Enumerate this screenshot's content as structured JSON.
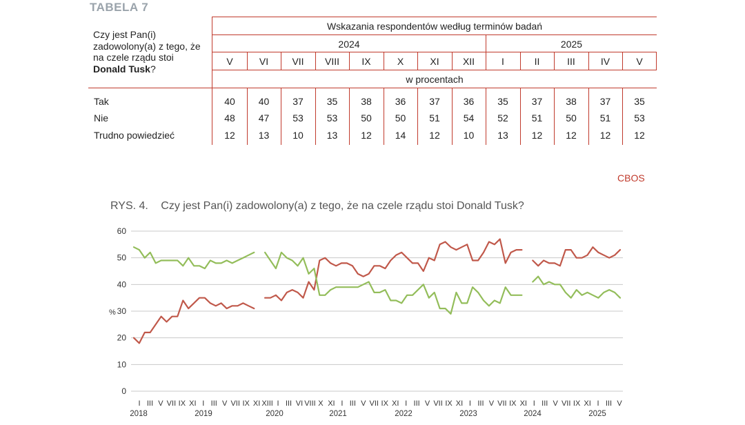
{
  "table": {
    "label": "TABELA 7",
    "question_part1": "Czy jest Pan(i) zadowolony(a) z tego, że na czele rządu stoi",
    "question_bold": "Donald Tusk",
    "question_end": "?",
    "header_title": "Wskazania respondentów według terminów badań",
    "years": [
      "2024",
      "2025"
    ],
    "months": [
      "V",
      "VI",
      "VII",
      "VIII",
      "IX",
      "X",
      "XI",
      "XII",
      "I",
      "II",
      "III",
      "IV",
      "V"
    ],
    "unit": "w procentach",
    "rows": [
      {
        "label": "Tak",
        "values": [
          "40",
          "40",
          "37",
          "35",
          "38",
          "36",
          "37",
          "36",
          "35",
          "37",
          "38",
          "37",
          "35"
        ]
      },
      {
        "label": "Nie",
        "values": [
          "48",
          "47",
          "53",
          "53",
          "50",
          "50",
          "51",
          "54",
          "52",
          "51",
          "50",
          "51",
          "53"
        ]
      },
      {
        "label": "Trudno powiedzieć",
        "values": [
          "12",
          "13",
          "10",
          "13",
          "12",
          "14",
          "12",
          "10",
          "13",
          "12",
          "12",
          "12",
          "12"
        ]
      }
    ],
    "source": "CBOS"
  },
  "chart_title_num": "RYS. 4.",
  "chart_title_text": "Czy jest Pan(i) zadowolony(a) z tego, że na czele rządu stoi Donald Tusk?",
  "chart_data": {
    "type": "line",
    "title": "Czy jest Pan(i) zadowolony(a) z tego, że na czele rządu stoi Donald Tusk?",
    "ylabel": "%",
    "ylim": [
      0,
      60
    ],
    "yticks": [
      0,
      10,
      20,
      30,
      40,
      50,
      60
    ],
    "grid": true,
    "legend": "none",
    "colors": {
      "red_series": "#c0584a",
      "green_series": "#93bd5a",
      "grid": "#c8c8c8",
      "axis_text": "#333333"
    },
    "x_month_labels": [
      "I",
      "III",
      "V",
      "VII",
      "IX",
      "XI",
      "I",
      "III",
      "V",
      "VII",
      "IX",
      "XI",
      "XIII",
      "I",
      "III",
      "VI",
      "VIII",
      "X",
      "XI",
      "I",
      "III",
      "V",
      "VII",
      "IX",
      "XI",
      "I",
      "III",
      "V",
      "VII",
      "IX",
      "XI",
      "I",
      "III",
      "V",
      "VII",
      "IX",
      "XI",
      "I",
      "III",
      "V",
      "VII",
      "IX",
      "XI",
      "I",
      "III",
      "V"
    ],
    "x_year_labels": [
      "2018",
      "2019",
      "2020",
      "2021",
      "2022",
      "2023",
      "2024",
      "2025"
    ],
    "series": [
      {
        "color_key": "red_series",
        "segments": [
          [
            [
              1,
              20
            ],
            [
              2,
              18
            ],
            [
              3,
              22
            ],
            [
              4,
              22
            ],
            [
              5,
              25
            ],
            [
              6,
              28
            ],
            [
              7,
              26
            ],
            [
              8,
              28
            ],
            [
              9,
              28
            ],
            [
              10,
              34
            ],
            [
              11,
              31
            ],
            [
              12,
              33
            ],
            [
              13,
              35
            ],
            [
              14,
              35
            ],
            [
              15,
              33
            ],
            [
              16,
              32
            ],
            [
              17,
              33
            ],
            [
              18,
              31
            ],
            [
              19,
              32
            ],
            [
              20,
              32
            ],
            [
              21,
              33
            ],
            [
              22,
              32
            ],
            [
              23,
              31
            ]
          ],
          [
            [
              25,
              35
            ],
            [
              26,
              35
            ],
            [
              27,
              36
            ],
            [
              28,
              34
            ],
            [
              29,
              37
            ],
            [
              30,
              38
            ],
            [
              31,
              37
            ],
            [
              32,
              35
            ],
            [
              33,
              41
            ],
            [
              34,
              38
            ],
            [
              35,
              49
            ],
            [
              36,
              50
            ],
            [
              37,
              48
            ],
            [
              38,
              47
            ],
            [
              39,
              48
            ],
            [
              40,
              48
            ],
            [
              41,
              47
            ],
            [
              42,
              44
            ],
            [
              43,
              43
            ],
            [
              44,
              44
            ],
            [
              45,
              47
            ],
            [
              46,
              47
            ],
            [
              47,
              46
            ],
            [
              48,
              49
            ],
            [
              49,
              51
            ],
            [
              50,
              52
            ],
            [
              51,
              50
            ],
            [
              52,
              48
            ],
            [
              53,
              48
            ],
            [
              54,
              45
            ],
            [
              55,
              50
            ],
            [
              56,
              49
            ],
            [
              57,
              55
            ],
            [
              58,
              56
            ],
            [
              59,
              54
            ],
            [
              60,
              53
            ],
            [
              61,
              54
            ],
            [
              62,
              55
            ],
            [
              63,
              49
            ],
            [
              64,
              49
            ],
            [
              65,
              52
            ],
            [
              66,
              56
            ],
            [
              67,
              55
            ],
            [
              68,
              57
            ],
            [
              69,
              48
            ],
            [
              70,
              52
            ],
            [
              71,
              53
            ],
            [
              72,
              53
            ]
          ],
          [
            [
              74,
              49
            ],
            [
              75,
              47
            ],
            [
              76,
              49
            ],
            [
              77,
              48
            ],
            [
              78,
              48
            ],
            [
              79,
              47
            ],
            [
              80,
              53
            ],
            [
              81,
              53
            ],
            [
              82,
              50
            ],
            [
              83,
              50
            ],
            [
              84,
              51
            ],
            [
              85,
              54
            ],
            [
              86,
              52
            ],
            [
              87,
              51
            ],
            [
              88,
              50
            ],
            [
              89,
              51
            ],
            [
              90,
              53
            ]
          ]
        ]
      },
      {
        "color_key": "green_series",
        "segments": [
          [
            [
              1,
              54
            ],
            [
              2,
              53
            ],
            [
              3,
              50
            ],
            [
              4,
              52
            ],
            [
              5,
              48
            ],
            [
              6,
              49
            ],
            [
              7,
              49
            ],
            [
              8,
              49
            ],
            [
              9,
              49
            ],
            [
              10,
              47
            ],
            [
              11,
              50
            ],
            [
              12,
              47
            ],
            [
              13,
              47
            ],
            [
              14,
              46
            ],
            [
              15,
              49
            ],
            [
              16,
              48
            ],
            [
              17,
              48
            ],
            [
              18,
              49
            ],
            [
              19,
              48
            ],
            [
              20,
              49
            ],
            [
              21,
              50
            ],
            [
              22,
              51
            ],
            [
              23,
              52
            ]
          ],
          [
            [
              25,
              52
            ],
            [
              26,
              49
            ],
            [
              27,
              46
            ],
            [
              28,
              52
            ],
            [
              29,
              50
            ],
            [
              30,
              49
            ],
            [
              31,
              47
            ],
            [
              32,
              50
            ],
            [
              33,
              44
            ],
            [
              34,
              46
            ],
            [
              35,
              36
            ],
            [
              36,
              36
            ],
            [
              37,
              38
            ],
            [
              38,
              39
            ],
            [
              39,
              39
            ],
            [
              40,
              39
            ],
            [
              41,
              39
            ],
            [
              42,
              39
            ],
            [
              43,
              40
            ],
            [
              44,
              41
            ],
            [
              45,
              37
            ],
            [
              46,
              37
            ],
            [
              47,
              38
            ],
            [
              48,
              34
            ],
            [
              49,
              34
            ],
            [
              50,
              33
            ],
            [
              51,
              36
            ],
            [
              52,
              36
            ],
            [
              53,
              38
            ],
            [
              54,
              40
            ],
            [
              55,
              35
            ],
            [
              56,
              37
            ],
            [
              57,
              31
            ],
            [
              58,
              31
            ],
            [
              59,
              29
            ],
            [
              60,
              37
            ],
            [
              61,
              33
            ],
            [
              62,
              33
            ],
            [
              63,
              39
            ],
            [
              64,
              37
            ],
            [
              65,
              34
            ],
            [
              66,
              32
            ],
            [
              67,
              34
            ],
            [
              68,
              33
            ],
            [
              69,
              39
            ],
            [
              70,
              36
            ],
            [
              71,
              36
            ],
            [
              72,
              36
            ]
          ],
          [
            [
              74,
              41
            ],
            [
              75,
              43
            ],
            [
              76,
              40
            ],
            [
              77,
              41
            ],
            [
              78,
              40
            ],
            [
              79,
              40
            ],
            [
              80,
              37
            ],
            [
              81,
              35
            ],
            [
              82,
              38
            ],
            [
              83,
              36
            ],
            [
              84,
              37
            ],
            [
              85,
              36
            ],
            [
              86,
              35
            ],
            [
              87,
              37
            ],
            [
              88,
              38
            ],
            [
              89,
              37
            ],
            [
              90,
              35
            ]
          ]
        ]
      }
    ]
  }
}
